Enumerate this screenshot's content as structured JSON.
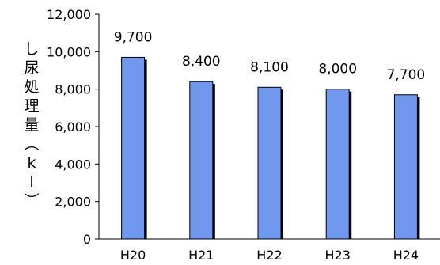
{
  "chart_data": {
    "type": "bar",
    "categories": [
      "H20",
      "H21",
      "H22",
      "H23",
      "H24"
    ],
    "values": [
      9700,
      8400,
      8100,
      8000,
      7700
    ],
    "data_labels": [
      "9,700",
      "8,400",
      "8,100",
      "8,000",
      "7,700"
    ],
    "y_ticks": [
      0,
      2000,
      4000,
      6000,
      8000,
      10000,
      12000
    ],
    "y_tick_labels": [
      "0",
      "2,000",
      "4,000",
      "6,000",
      "8,000",
      "10,000",
      "12,000"
    ],
    "ylim": [
      0,
      12000
    ],
    "ylabel": "し尿処理量（kl）",
    "ylabel_chars": [
      "し",
      "尿",
      "処",
      "理",
      "量",
      "︵",
      "k",
      "l",
      "︶"
    ],
    "title": "",
    "xlabel": "",
    "grid": false,
    "bar_color": "#6f98ee",
    "bar_edge_color": "#000000"
  }
}
